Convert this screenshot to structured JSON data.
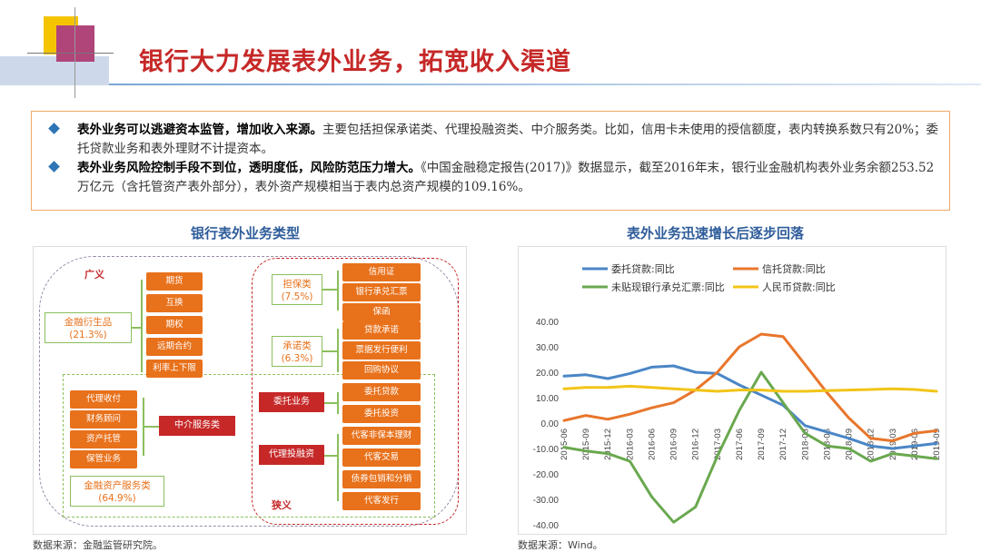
{
  "title": "银行大力发展表外业务，拓宽收入渠道",
  "summary": {
    "bullet1_bold": "表外业务可以逃避资本监管，增加收入来源。",
    "bullet1_text": "主要包括担保承诺类、代理投融资类、中介服务类。比如，信用卡未使用的授信额度，表内转换系数只有20%；委托贷款业务和表外理财不计提资本。",
    "bullet2_bold": "表外业务风险控制手段不到位，透明度低，风险防范压力增大。",
    "bullet2_text": "《中国金融稳定报告(2017)》数据显示，截至2016年末，银行业金融机构表外业务余额253.52万亿元（含托管资产表外部分），表外资产规模相当于表内总资产规模的109.16%。"
  },
  "left": {
    "heading": "银行表外业务类型",
    "broad_label": "广义",
    "narrow_label": "狭义",
    "derivatives": {
      "name": "金融衍生品",
      "pct": "(21.3%)",
      "items": [
        "期货",
        "互换",
        "期权",
        "远期合约",
        "利率上下限"
      ]
    },
    "guarantee": {
      "name": "担保类",
      "pct": "(7.5%)",
      "items": [
        "信用证",
        "银行承兑汇票",
        "保函"
      ]
    },
    "commitment": {
      "name": "承诺类",
      "pct": "(6.3%)",
      "items": [
        "贷款承诺",
        "票据发行便利",
        "回购协议"
      ]
    },
    "entrusted": {
      "name": "委托业务",
      "items": [
        "委托贷款",
        "委托投资"
      ]
    },
    "agency": {
      "name": "代理投融资",
      "items": [
        "代客非保本理财",
        "代客交易",
        "债券包销和分销",
        "代客发行"
      ]
    },
    "intermediary": {
      "name": "中介服务类"
    },
    "service_items": [
      "代理收付",
      "财务顾问",
      "资产托管",
      "保管业务"
    ],
    "service_group": {
      "name": "金融资产服务类",
      "pct": "(64.9%)"
    },
    "source": "数据来源：金融监管研究院。"
  },
  "right": {
    "heading": "表外业务迅速增长后逐步回落",
    "source": "数据来源：Wind。"
  },
  "chart_data": {
    "type": "line",
    "title": "",
    "xlabel": "",
    "ylabel": "",
    "ylim": [
      -40,
      40
    ],
    "yticks": [
      "40.00",
      "30.00",
      "20.00",
      "10.00",
      "0.00",
      "-10.00",
      "-20.00",
      "-30.00",
      "-40.00"
    ],
    "x_tick_labels": [
      "2015-06",
      "2015-09",
      "2015-12",
      "2016-03",
      "2016-06",
      "2016-09",
      "2016-12",
      "2017-03",
      "2017-06",
      "2017-09",
      "2017-12",
      "2018-03",
      "2018-06",
      "2018-09",
      "2018-12",
      "2019-03",
      "2019-06",
      "2019-09"
    ],
    "x": [
      "2015-06",
      "2015-09",
      "2015-12",
      "2016-03",
      "2016-06",
      "2016-09",
      "2016-12",
      "2017-03",
      "2017-06",
      "2017-09",
      "2017-12",
      "2018-03",
      "2018-06",
      "2018-09",
      "2018-12",
      "2019-03",
      "2019-06",
      "2019-09"
    ],
    "legend_position": "top",
    "series": [
      {
        "name": "委托贷款:同比",
        "color": "#4a86c6",
        "values": [
          18.5,
          19,
          17.5,
          19.5,
          22,
          22.5,
          20,
          19.5,
          15,
          11,
          7,
          -1,
          -3.5,
          -6,
          -9,
          -10,
          -9,
          -8
        ]
      },
      {
        "name": "信托贷款:同比",
        "color": "#e8762c",
        "values": [
          1,
          3,
          1.5,
          3.5,
          6,
          8,
          13,
          20,
          30,
          35,
          34,
          23,
          12,
          2,
          -6,
          -7,
          -4,
          -3
        ]
      },
      {
        "name": "未贴现银行承兑汇票:同比",
        "color": "#6aa84f",
        "values": [
          -9.5,
          -11,
          -12,
          -15,
          -29,
          -39,
          -33,
          -13,
          5,
          20,
          8,
          -4,
          -9,
          -10,
          -15,
          -12,
          -13,
          -14
        ]
      },
      {
        "name": "人民币贷款:同比",
        "color": "#f2c418",
        "values": [
          13.5,
          14,
          14,
          14.5,
          14,
          13.5,
          13,
          12.5,
          13,
          13,
          12.5,
          12.5,
          12.8,
          13,
          13.2,
          13.5,
          13.2,
          12.5
        ]
      }
    ]
  }
}
